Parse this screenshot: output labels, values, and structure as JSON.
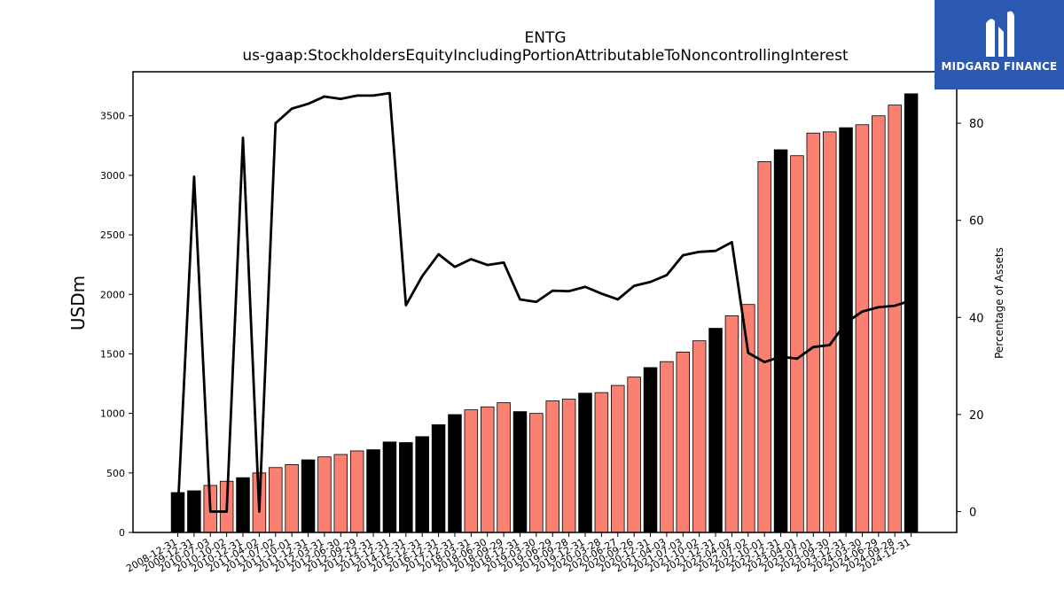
{
  "chart_data": {
    "type": "bar",
    "title": "ENTG",
    "subtitle": "us-gaap:StockholdersEquityIncludingPortionAttributableToNoncontrollingInterest",
    "ylabel": "USDm",
    "y2label": "Percentage of Assets",
    "ylim": [
      0,
      3870
    ],
    "y2lim": [
      -4.3,
      90.6
    ],
    "yticks": [
      0,
      500,
      1000,
      1500,
      2000,
      2500,
      3000,
      3500
    ],
    "y2ticks": [
      0,
      20,
      40,
      60,
      80
    ],
    "categories": [
      "2008-12-31",
      "2009-12-31",
      "2010-07-03",
      "2010-10-02",
      "2010-12-31",
      "2011-04-02",
      "2011-07-02",
      "2011-10-01",
      "2011-12-31",
      "2012-03-31",
      "2012-06-30",
      "2012-09-29",
      "2012-12-31",
      "2013-12-31",
      "2014-12-31",
      "2015-12-31",
      "2016-12-31",
      "2017-12-31",
      "2018-03-31",
      "2018-06-30",
      "2018-09-29",
      "2018-12-31",
      "2019-03-30",
      "2019-06-29",
      "2019-09-28",
      "2019-12-31",
      "2020-03-28",
      "2020-06-27",
      "2020-09-26",
      "2020-12-31",
      "2021-04-03",
      "2021-07-03",
      "2021-10-02",
      "2021-12-31",
      "2022-04-02",
      "2022-07-02",
      "2022-10-01",
      "2022-12-31",
      "2023-04-01",
      "2023-07-01",
      "2023-09-30",
      "2023-12-31",
      "2024-03-30",
      "2024-06-29",
      "2024-09-28",
      "2024-12-31"
    ],
    "series": [
      {
        "type": "bar",
        "values": [
          335,
          350,
          395,
          430,
          460,
          500,
          545,
          570,
          610,
          635,
          655,
          685,
          695,
          760,
          755,
          805,
          905,
          990,
          1030,
          1055,
          1090,
          1015,
          1000,
          1105,
          1120,
          1170,
          1175,
          1235,
          1305,
          1385,
          1435,
          1515,
          1610,
          1715,
          1820,
          1915,
          3115,
          3215,
          3165,
          3355,
          3365,
          3400,
          3425,
          3500,
          3590,
          3685
        ],
        "colors": [
          "#000000",
          "#000000",
          "#fa8072",
          "#fa8072",
          "#000000",
          "#fa8072",
          "#fa8072",
          "#fa8072",
          "#000000",
          "#fa8072",
          "#fa8072",
          "#fa8072",
          "#000000",
          "#000000",
          "#000000",
          "#000000",
          "#000000",
          "#000000",
          "#fa8072",
          "#fa8072",
          "#fa8072",
          "#000000",
          "#fa8072",
          "#fa8072",
          "#fa8072",
          "#000000",
          "#fa8072",
          "#fa8072",
          "#fa8072",
          "#000000",
          "#fa8072",
          "#fa8072",
          "#fa8072",
          "#000000",
          "#fa8072",
          "#fa8072",
          "#fa8072",
          "#000000",
          "#fa8072",
          "#fa8072",
          "#fa8072",
          "#000000",
          "#fa8072",
          "#fa8072",
          "#fa8072",
          "#000000"
        ]
      },
      {
        "type": "line",
        "axis": "right",
        "values": [
          0,
          69,
          0,
          0,
          77,
          0,
          80,
          83,
          84,
          85.5,
          85,
          85.7,
          85.7,
          86.2,
          42.5,
          48.5,
          53,
          50.4,
          52,
          50.8,
          51.3,
          43.7,
          43.2,
          45.5,
          45.4,
          46.3,
          44.9,
          43.7,
          46.5,
          47.3,
          48.7,
          52.8,
          53.5,
          53.7,
          55.5,
          32.7,
          30.8,
          31.9,
          31.5,
          33.9,
          34.3,
          38.9,
          41.2,
          42.1,
          42.4,
          43.5
        ],
        "color": "#000000"
      }
    ],
    "grid": false,
    "legend": "none"
  },
  "logo": {
    "text": "MIDGARD FINANCE",
    "background": "#2b58b0"
  }
}
